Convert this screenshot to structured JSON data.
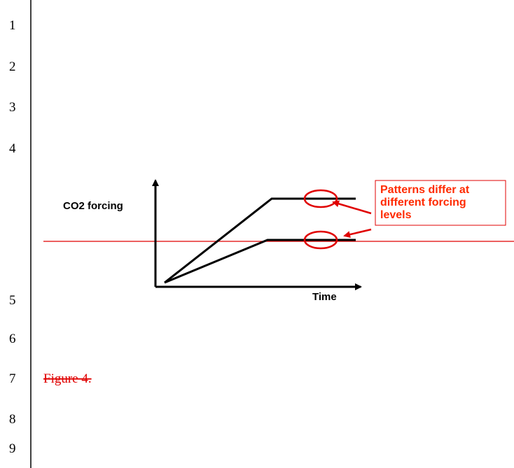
{
  "line_numbers": [
    "1",
    "2",
    "3",
    "4",
    "5",
    "6",
    "7",
    "8",
    "9"
  ],
  "figure": {
    "y_label": "CO2 forcing",
    "x_label": "Time",
    "annotation": [
      "Patterns differ at",
      "different forcing",
      "levels"
    ]
  },
  "caption": "Figure 4."
}
